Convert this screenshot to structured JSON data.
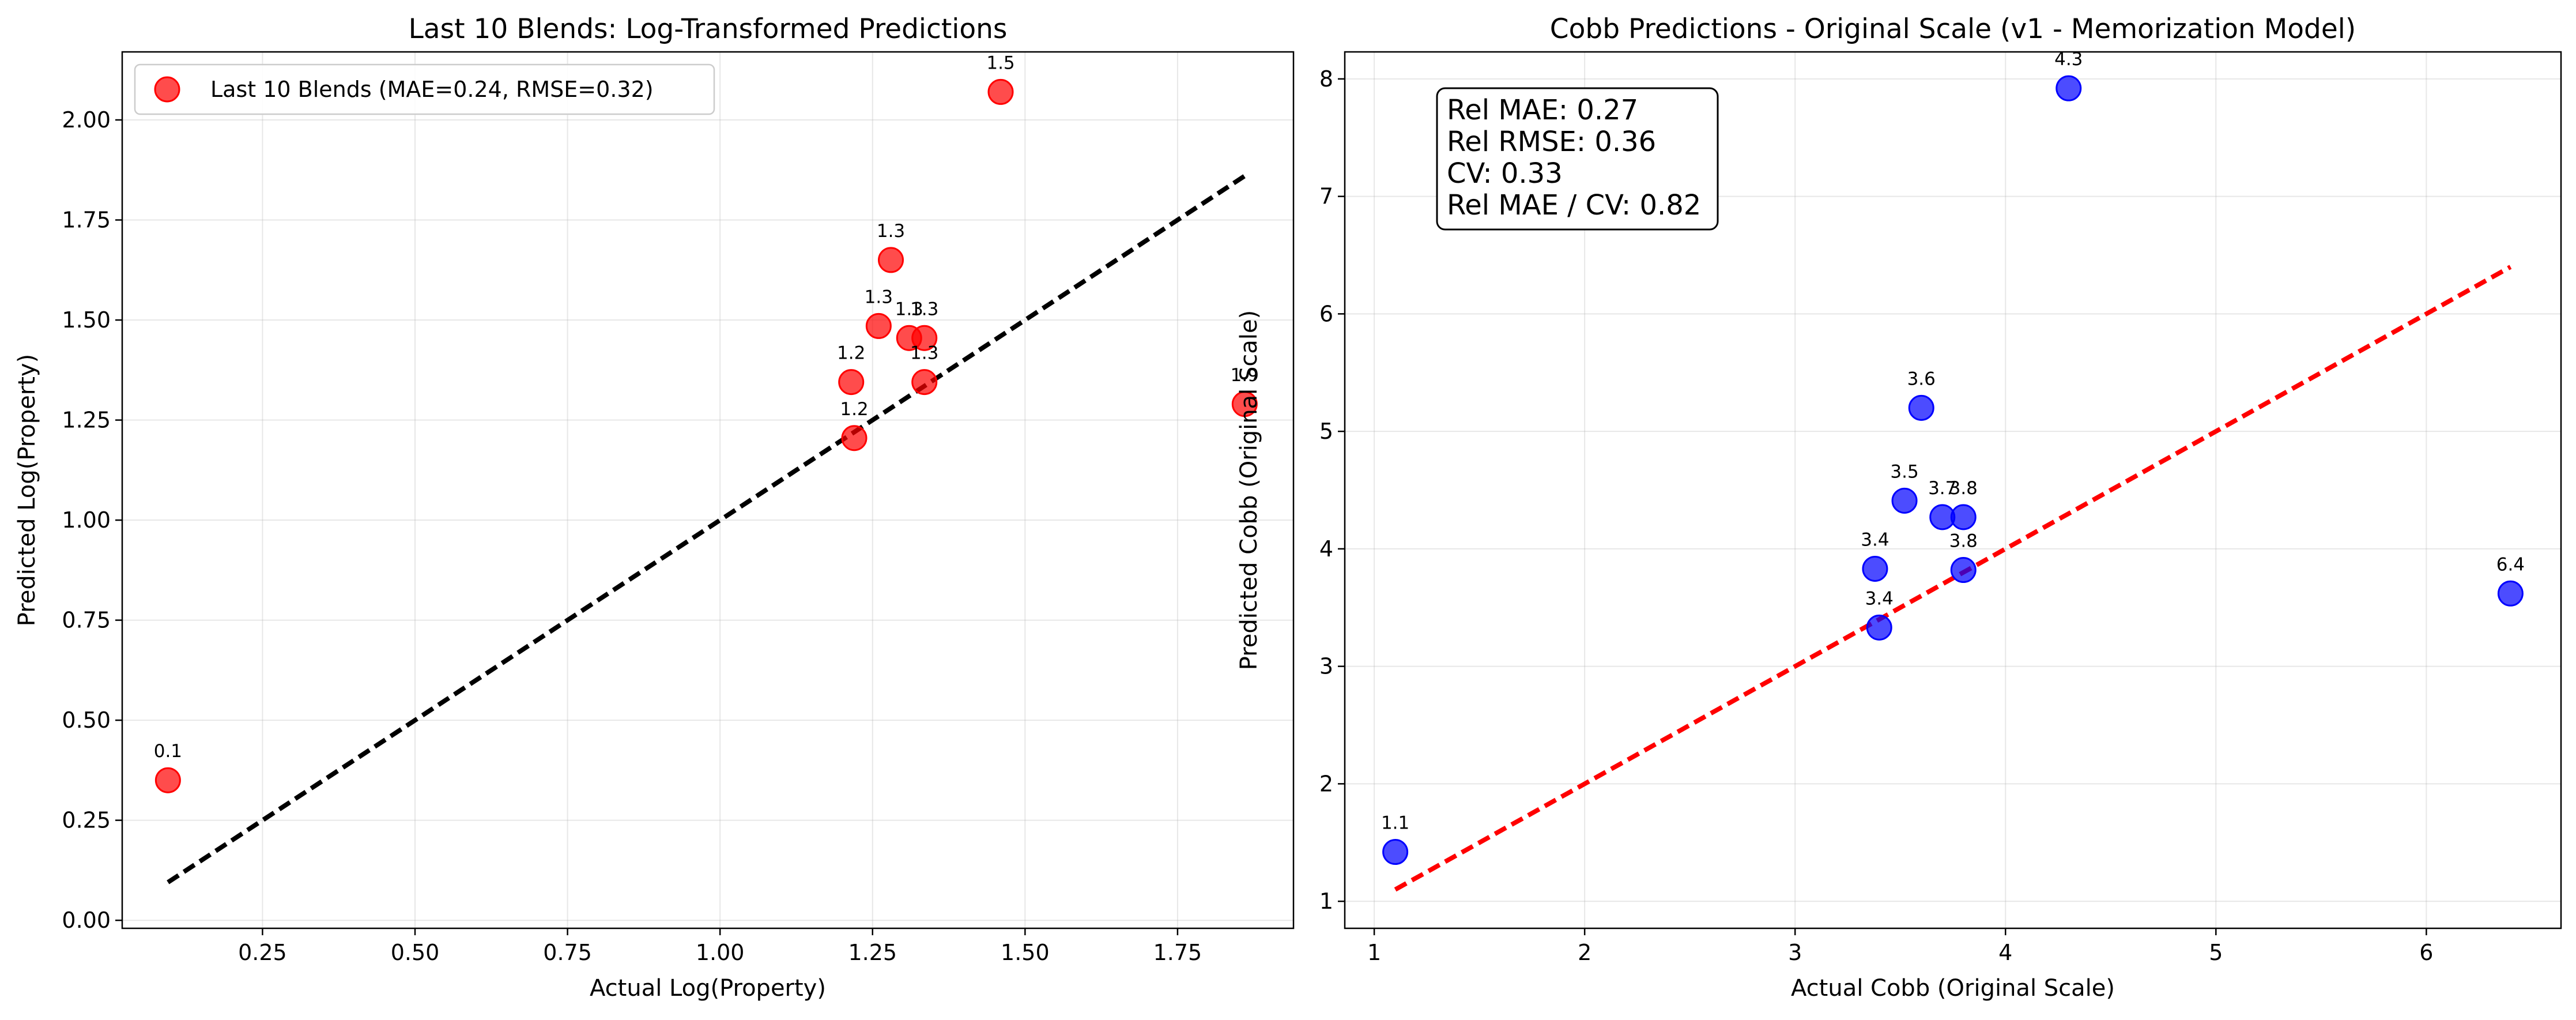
{
  "chart_data": [
    {
      "type": "scatter",
      "title": "Last 10 Blends: Log-Transformed Predictions",
      "xlabel": "Actual Log(Property)",
      "ylabel": "Predicted Log(Property)",
      "xlim": [
        0.02,
        1.94
      ],
      "ylim": [
        -0.02,
        2.17
      ],
      "xticks": [
        0.25,
        0.5,
        0.75,
        1.0,
        1.25,
        1.5,
        1.75
      ],
      "xtick_labels": [
        "0.25",
        "0.50",
        "0.75",
        "1.00",
        "1.25",
        "1.50",
        "1.75"
      ],
      "yticks": [
        0.0,
        0.25,
        0.5,
        0.75,
        1.0,
        1.25,
        1.5,
        1.75,
        2.0
      ],
      "ytick_labels": [
        "0.00",
        "0.25",
        "0.50",
        "0.75",
        "1.00",
        "1.25",
        "1.50",
        "1.75",
        "2.00"
      ],
      "grid": true,
      "legend": "top-left",
      "point_color": "#ff0000",
      "line_color": "#000000",
      "identity_line": [
        [
          0.095,
          0.095
        ],
        [
          1.86,
          1.86
        ]
      ],
      "series": [
        {
          "name": "Last 10 Blends (MAE=0.24, RMSE=0.32)",
          "points": [
            {
              "x": 0.095,
              "y": 0.35,
              "label": "0.1"
            },
            {
              "x": 1.215,
              "y": 1.345,
              "label": "1.2"
            },
            {
              "x": 1.22,
              "y": 1.205,
              "label": "1.2"
            },
            {
              "x": 1.26,
              "y": 1.485,
              "label": "1.3"
            },
            {
              "x": 1.28,
              "y": 1.65,
              "label": "1.3"
            },
            {
              "x": 1.31,
              "y": 1.455,
              "label": "1.3"
            },
            {
              "x": 1.335,
              "y": 1.455,
              "label": "1.3"
            },
            {
              "x": 1.335,
              "y": 1.345,
              "label": "1.3"
            },
            {
              "x": 1.46,
              "y": 2.07,
              "label": "1.5"
            },
            {
              "x": 1.86,
              "y": 1.29,
              "label": "1.9"
            }
          ]
        }
      ]
    },
    {
      "type": "scatter",
      "title": "Cobb Predictions - Original Scale (v1 - Memorization Model)",
      "xlabel": "Actual Cobb (Original Scale)",
      "ylabel": "Predicted Cobb (Original Scale)",
      "xlim": [
        0.86,
        6.64
      ],
      "ylim": [
        0.77,
        8.23
      ],
      "xticks": [
        1,
        2,
        3,
        4,
        5,
        6
      ],
      "xtick_labels": [
        "1",
        "2",
        "3",
        "4",
        "5",
        "6"
      ],
      "yticks": [
        1,
        2,
        3,
        4,
        5,
        6,
        7,
        8
      ],
      "ytick_labels": [
        "1",
        "2",
        "3",
        "4",
        "5",
        "6",
        "7",
        "8"
      ],
      "grid": true,
      "point_color": "#0000ff",
      "line_color": "#ff0000",
      "identity_line": [
        [
          1.1,
          1.1
        ],
        [
          6.4,
          6.4
        ]
      ],
      "stats_box": {
        "lines": [
          "Rel MAE: 0.27",
          "Rel RMSE: 0.36",
          "CV: 0.33",
          "Rel MAE / CV: 0.82"
        ]
      },
      "series": [
        {
          "points": [
            {
              "x": 1.1,
              "y": 1.42,
              "label": "1.1"
            },
            {
              "x": 3.38,
              "y": 3.83,
              "label": "3.4"
            },
            {
              "x": 3.4,
              "y": 3.33,
              "label": "3.4"
            },
            {
              "x": 3.52,
              "y": 4.41,
              "label": "3.5"
            },
            {
              "x": 3.6,
              "y": 5.2,
              "label": "3.6"
            },
            {
              "x": 3.7,
              "y": 4.27,
              "label": "3.7"
            },
            {
              "x": 3.8,
              "y": 4.27,
              "label": "3.8"
            },
            {
              "x": 3.8,
              "y": 3.82,
              "label": "3.8"
            },
            {
              "x": 4.3,
              "y": 7.92,
              "label": "4.3"
            },
            {
              "x": 6.4,
              "y": 3.62,
              "label": "6.4"
            }
          ]
        }
      ]
    }
  ]
}
